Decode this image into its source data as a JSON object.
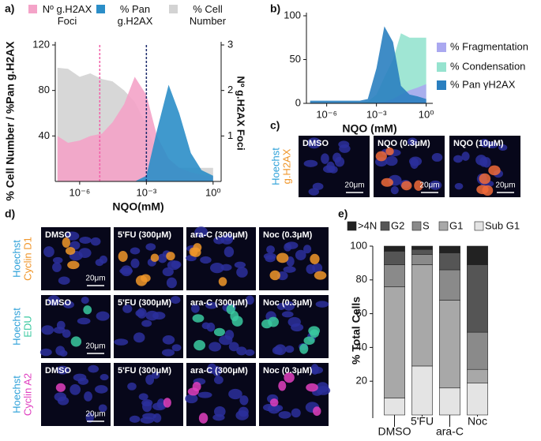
{
  "panel_labels": [
    "a)",
    "b)",
    "c)",
    "d)",
    "e)"
  ],
  "chart_data": [
    {
      "type": "area",
      "log_x": true,
      "xlabel": "NQO(mM)",
      "ylabel": "% Cell Number / %Pan g.H2AX",
      "y2label": "Nº g.H2AX Foci",
      "x": [
        1e-07,
        3e-07,
        1e-06,
        3e-06,
        1e-05,
        3e-05,
        0.0001,
        0.0003,
        0.001,
        0.003,
        0.01,
        0.03,
        0.1,
        0.3,
        1
      ],
      "xlim": [
        8e-08,
        2.3
      ],
      "xticks": [
        {
          "value": 1e-06,
          "label": "10⁻⁶"
        },
        {
          "value": 0.001,
          "label": "10⁻³"
        },
        {
          "value": 1,
          "label": "10⁰"
        }
      ],
      "ylim": [
        0,
        120
      ],
      "yticks": [
        40,
        80,
        120
      ],
      "y2lim": [
        0,
        3
      ],
      "y2ticks": [
        1,
        2,
        3
      ],
      "legend": "top",
      "series": [
        {
          "name": "% Cell Number",
          "color": "#d3d3d3",
          "values": [
            100,
            99,
            92,
            95,
            90,
            88,
            80,
            70,
            50,
            25,
            15,
            12,
            12,
            12,
            12
          ]
        },
        {
          "name": "Nº g.H2AX Foci",
          "color": "#f4a3c8",
          "axis": "y2",
          "values": [
            1.0,
            0.85,
            0.9,
            1.0,
            1.05,
            1.3,
            1.7,
            2.3,
            1.9,
            1.0,
            0.5,
            0.3,
            0.2,
            0.15,
            0.1
          ]
        },
        {
          "name": "% Pan g.H2AX",
          "color": "#2b8ec8",
          "values": [
            0,
            0,
            0,
            0,
            0,
            0,
            0,
            0,
            5,
            45,
            85,
            60,
            25,
            10,
            5
          ]
        }
      ],
      "reference_lines": [
        {
          "x": 8e-06,
          "color": "#f25fa8"
        },
        {
          "x": 0.001,
          "color": "#1b2a6b"
        }
      ]
    },
    {
      "type": "area",
      "log_x": true,
      "xlabel": "NQO (mM)",
      "x": [
        1e-07,
        3e-07,
        1e-06,
        3e-06,
        1e-05,
        3e-05,
        0.0001,
        0.0003,
        0.001,
        0.003,
        0.01,
        0.03,
        0.1,
        0.3,
        1
      ],
      "xlim": [
        6e-08,
        2.5
      ],
      "xticks": [
        {
          "value": 1e-06,
          "label": "10⁻⁶"
        },
        {
          "value": 0.001,
          "label": "10⁻³"
        },
        {
          "value": 1,
          "label": "10⁰"
        }
      ],
      "ylim": [
        0,
        100
      ],
      "yticks": [
        0,
        50,
        100
      ],
      "legend": "right",
      "series": [
        {
          "name": "% Condensation",
          "color": "#96e3cf",
          "values": [
            0,
            0,
            0,
            0,
            0,
            0,
            0,
            2,
            10,
            30,
            50,
            80,
            75,
            75,
            75
          ]
        },
        {
          "name": "% Fragmentation",
          "color": "#aaa8f0",
          "values": [
            0,
            0,
            0,
            0,
            0,
            0,
            0,
            0,
            1,
            2,
            5,
            10,
            15,
            18,
            22
          ]
        },
        {
          "name": "% Pan γH2AX",
          "color": "#2a7fc0",
          "values": [
            3,
            3,
            3,
            3,
            3,
            3,
            3,
            5,
            40,
            88,
            70,
            20,
            10,
            8,
            5
          ]
        }
      ]
    },
    {
      "type": "stacked_bar",
      "ylabel": "% Total Cells",
      "categories": [
        "DMSO",
        "5'FU",
        "ara-C",
        "Noc"
      ],
      "ylim": [
        0,
        100
      ],
      "yticks": [
        20,
        40,
        60,
        80,
        100
      ],
      "legend": "top",
      "series": [
        {
          "name": "Sub G1",
          "color": "#e4e4e4",
          "values": [
            10,
            29,
            16,
            19
          ]
        },
        {
          "name": "G1",
          "color": "#a8a8a8",
          "values": [
            66,
            60,
            52,
            8
          ]
        },
        {
          "name": "S",
          "color": "#8a8a8a",
          "values": [
            13,
            6,
            18,
            22
          ]
        },
        {
          "name": "G2",
          "color": "#555555",
          "values": [
            8,
            3,
            10,
            40
          ]
        },
        {
          "name": ">4N",
          "color": "#222222",
          "values": [
            3,
            2,
            4,
            11
          ]
        }
      ]
    }
  ],
  "panel_c": {
    "stains": [
      "Hoechst",
      "g.H2AX"
    ],
    "conditions": [
      "DMSO",
      "NQO (0.3μM)",
      "NQO (10μM)"
    ],
    "scale_bar": "20μm"
  },
  "panel_d": {
    "rows": [
      {
        "stains": [
          "Hoechst",
          "Cyclin D1"
        ]
      },
      {
        "stains": [
          "Hoechst",
          "EDU"
        ]
      },
      {
        "stains": [
          "Hoechst",
          "Cyclin A2"
        ]
      }
    ],
    "conditions": [
      "DMSO",
      "5'FU (300μM)",
      "ara-C (300μM)",
      "Noc (0.3μM)"
    ],
    "scale_bar": "20μm"
  }
}
